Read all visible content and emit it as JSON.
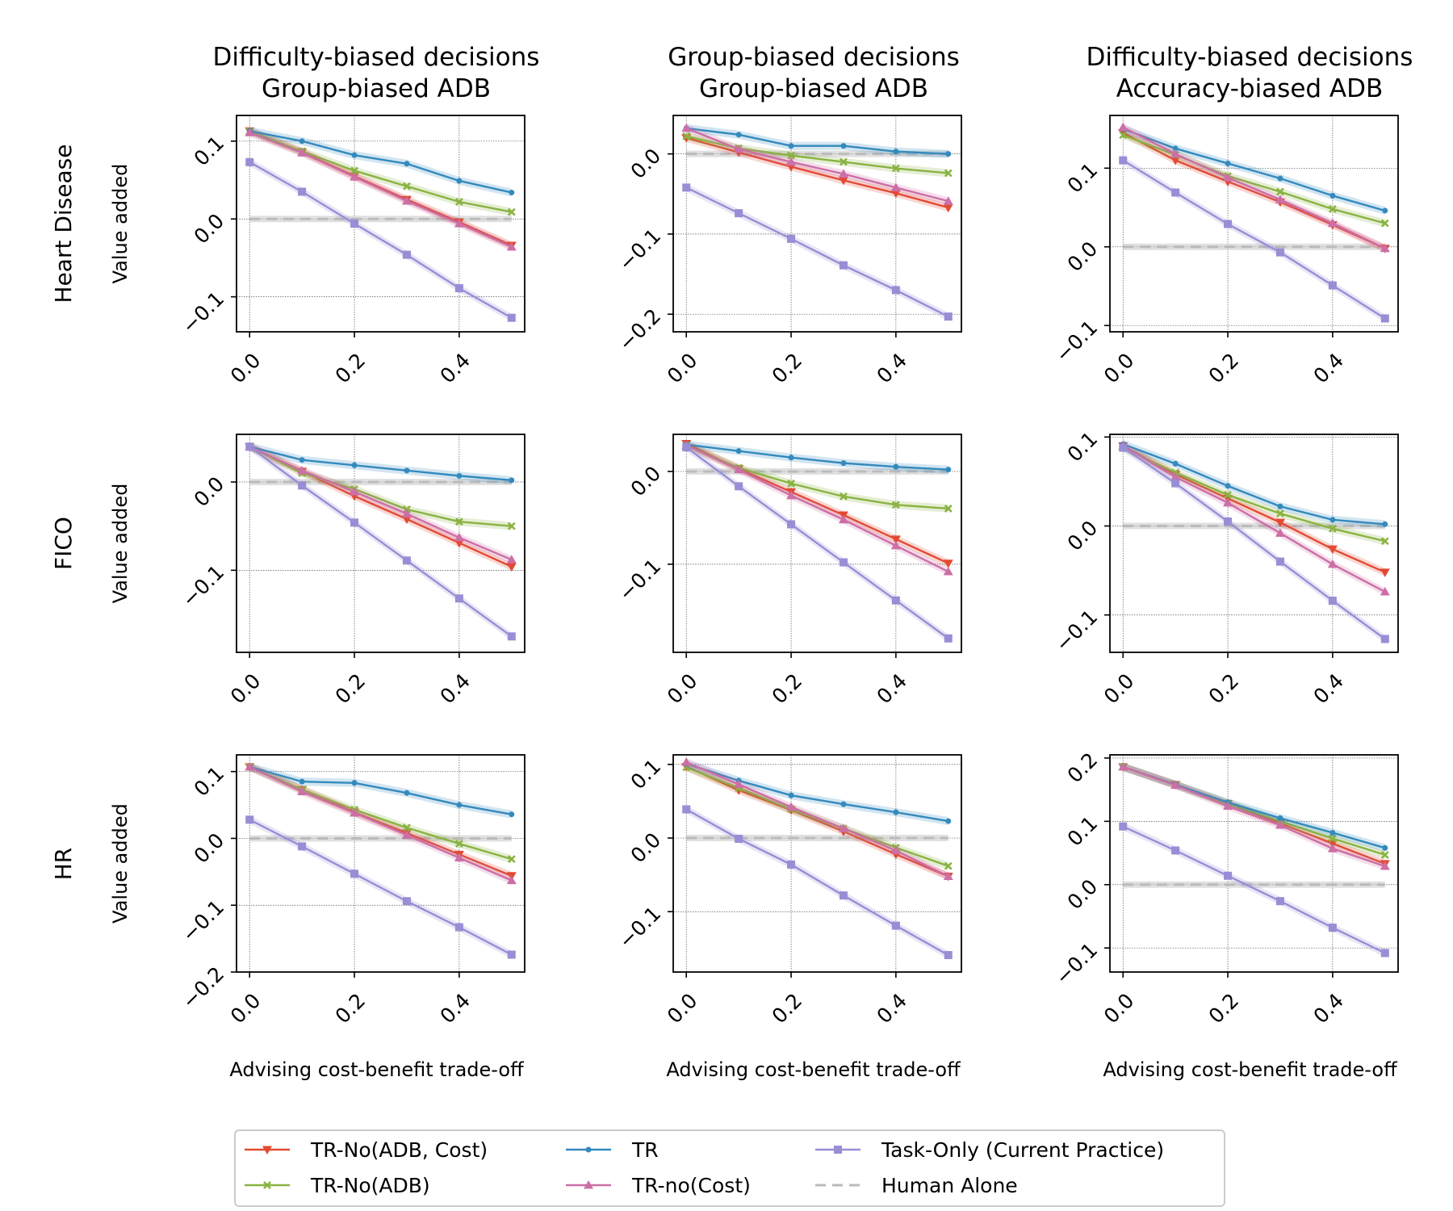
{
  "figure": {
    "column_titles": [
      [
        "Difficulty-biased decisions",
        "Group-biased ADB"
      ],
      [
        "Group-biased decisions",
        "Group-biased ADB"
      ],
      [
        "Difficulty-biased decisions",
        "Accuracy-biased ADB"
      ]
    ],
    "row_titles": [
      "Heart Disease",
      "FICO",
      "HR"
    ]
  },
  "series_styles": [
    {
      "name": "TR-No(ADB, Cost)",
      "color": "#e24a33",
      "marker": "triangle-down"
    },
    {
      "name": "TR-No(ADB)",
      "color": "#8ab342",
      "marker": "x"
    },
    {
      "name": "TR",
      "color": "#348abd",
      "marker": "dot"
    },
    {
      "name": "TR-no(Cost)",
      "color": "#cc6fa6",
      "marker": "triangle-up"
    },
    {
      "name": "Task-Only (Current Practice)",
      "color": "#988ed5",
      "marker": "square"
    },
    {
      "name": "Human Alone",
      "color": "#bbbbbb",
      "marker": "dashed"
    }
  ],
  "chart_data": [
    {
      "type": "line",
      "row": 0,
      "col": 0,
      "ylabel": "Value added",
      "xlabel": "",
      "xlim": [
        -0.025,
        0.525
      ],
      "ylim": [
        -0.145,
        0.133
      ],
      "x": [
        0,
        0.1,
        0.2,
        0.3,
        0.4,
        0.5
      ],
      "xticks": [
        0.0,
        0.2,
        0.4
      ],
      "xtick_labels": [
        "0.0",
        "0.2",
        "0.4"
      ],
      "yticks": [
        0.1,
        0.0,
        -0.1
      ],
      "ytick_labels": [
        "0.1",
        "0.0",
        "−0.1"
      ],
      "human_alone": 0.0,
      "series": [
        {
          "name": "TR-No(ADB, Cost)",
          "values": [
            0.113,
            0.086,
            0.055,
            0.025,
            -0.004,
            -0.034
          ]
        },
        {
          "name": "TR-No(ADB)",
          "values": [
            0.113,
            0.087,
            0.062,
            0.042,
            0.022,
            0.009
          ]
        },
        {
          "name": "TR",
          "values": [
            0.113,
            0.1,
            0.082,
            0.071,
            0.049,
            0.034
          ]
        },
        {
          "name": "TR-no(Cost)",
          "values": [
            0.111,
            0.085,
            0.054,
            0.023,
            -0.006,
            -0.036
          ]
        },
        {
          "name": "Task-Only (Current Practice)",
          "values": [
            0.073,
            0.035,
            -0.006,
            -0.046,
            -0.089,
            -0.127
          ]
        }
      ]
    },
    {
      "type": "line",
      "row": 0,
      "col": 1,
      "ylabel": "",
      "xlabel": "",
      "xlim": [
        -0.025,
        0.525
      ],
      "ylim": [
        -0.222,
        0.048
      ],
      "x": [
        0,
        0.1,
        0.2,
        0.3,
        0.4,
        0.5
      ],
      "xticks": [
        0.0,
        0.2,
        0.4
      ],
      "xtick_labels": [
        "0.0",
        "0.2",
        "0.4"
      ],
      "yticks": [
        0.0,
        -0.1,
        -0.2
      ],
      "ytick_labels": [
        "0.0",
        "−0.1",
        "−0.2"
      ],
      "human_alone": 0.0,
      "series": [
        {
          "name": "TR-No(ADB, Cost)",
          "values": [
            0.02,
            0.002,
            -0.016,
            -0.033,
            -0.049,
            -0.067
          ]
        },
        {
          "name": "TR-No(ADB)",
          "values": [
            0.022,
            0.007,
            -0.002,
            -0.01,
            -0.018,
            -0.024
          ]
        },
        {
          "name": "TR",
          "values": [
            0.032,
            0.024,
            0.01,
            0.01,
            0.003,
            0.0
          ]
        },
        {
          "name": "TR-no(Cost)",
          "values": [
            0.032,
            0.006,
            -0.01,
            -0.025,
            -0.042,
            -0.059
          ]
        },
        {
          "name": "Task-Only (Current Practice)",
          "values": [
            -0.042,
            -0.074,
            -0.106,
            -0.139,
            -0.17,
            -0.203
          ]
        }
      ]
    },
    {
      "type": "line",
      "row": 0,
      "col": 2,
      "ylabel": "",
      "xlabel": "",
      "xlim": [
        -0.025,
        0.525
      ],
      "ylim": [
        -0.108,
        0.167
      ],
      "x": [
        0,
        0.1,
        0.2,
        0.3,
        0.4,
        0.5
      ],
      "xticks": [
        0.0,
        0.2,
        0.4
      ],
      "xtick_labels": [
        "0.0",
        "0.2",
        "0.4"
      ],
      "yticks": [
        0.1,
        0.0,
        -0.1
      ],
      "ytick_labels": [
        "0.1",
        "0.0",
        "−0.1"
      ],
      "human_alone": 0.0,
      "series": [
        {
          "name": "TR-No(ADB, Cost)",
          "values": [
            0.145,
            0.11,
            0.083,
            0.057,
            0.028,
            -0.002
          ]
        },
        {
          "name": "TR-No(ADB)",
          "values": [
            0.142,
            0.117,
            0.09,
            0.07,
            0.048,
            0.03
          ]
        },
        {
          "name": "TR",
          "values": [
            0.15,
            0.125,
            0.106,
            0.087,
            0.065,
            0.046
          ]
        },
        {
          "name": "TR-no(Cost)",
          "values": [
            0.152,
            0.118,
            0.088,
            0.06,
            0.03,
            -0.002
          ]
        },
        {
          "name": "Task-Only (Current Practice)",
          "values": [
            0.11,
            0.069,
            0.029,
            -0.007,
            -0.049,
            -0.091
          ]
        }
      ]
    },
    {
      "type": "line",
      "row": 1,
      "col": 0,
      "ylabel": "Value added",
      "xlabel": "",
      "xlim": [
        -0.025,
        0.525
      ],
      "ylim": [
        -0.193,
        0.054
      ],
      "x": [
        0,
        0.1,
        0.2,
        0.3,
        0.4,
        0.5
      ],
      "xticks": [
        0.0,
        0.2,
        0.4
      ],
      "xtick_labels": [
        "0.0",
        "0.2",
        "0.4"
      ],
      "yticks": [
        0.0,
        -0.1
      ],
      "ytick_labels": [
        "0.0",
        "−0.1"
      ],
      "human_alone": 0.0,
      "series": [
        {
          "name": "TR-No(ADB, Cost)",
          "values": [
            0.04,
            0.012,
            -0.016,
            -0.042,
            -0.069,
            -0.096
          ]
        },
        {
          "name": "TR-No(ADB)",
          "values": [
            0.04,
            0.01,
            -0.008,
            -0.031,
            -0.045,
            -0.05
          ]
        },
        {
          "name": "TR",
          "values": [
            0.04,
            0.025,
            0.019,
            0.013,
            0.007,
            0.002
          ]
        },
        {
          "name": "TR-no(Cost)",
          "values": [
            0.04,
            0.013,
            -0.011,
            -0.036,
            -0.063,
            -0.088
          ]
        },
        {
          "name": "Task-Only (Current Practice)",
          "values": [
            0.04,
            -0.004,
            -0.046,
            -0.089,
            -0.132,
            -0.175
          ]
        }
      ]
    },
    {
      "type": "line",
      "row": 1,
      "col": 1,
      "ylabel": "",
      "xlabel": "",
      "xlim": [
        -0.025,
        0.525
      ],
      "ylim": [
        -0.195,
        0.04
      ],
      "x": [
        0,
        0.1,
        0.2,
        0.3,
        0.4,
        0.5
      ],
      "xticks": [
        0.0,
        0.2,
        0.4
      ],
      "xtick_labels": [
        "0.0",
        "0.2",
        "0.4"
      ],
      "yticks": [
        0.0,
        -0.1
      ],
      "ytick_labels": [
        "0.0",
        "−0.1"
      ],
      "human_alone": 0.0,
      "series": [
        {
          "name": "TR-No(ADB, Cost)",
          "values": [
            0.03,
            0.003,
            -0.022,
            -0.047,
            -0.073,
            -0.099
          ]
        },
        {
          "name": "TR-No(ADB)",
          "values": [
            0.028,
            0.004,
            -0.013,
            -0.027,
            -0.036,
            -0.04
          ]
        },
        {
          "name": "TR",
          "values": [
            0.029,
            0.022,
            0.015,
            0.009,
            0.005,
            0.002
          ]
        },
        {
          "name": "TR-no(Cost)",
          "values": [
            0.028,
            0.002,
            -0.026,
            -0.052,
            -0.08,
            -0.108
          ]
        },
        {
          "name": "Task-Only (Current Practice)",
          "values": [
            0.026,
            -0.016,
            -0.057,
            -0.098,
            -0.139,
            -0.18
          ]
        }
      ]
    },
    {
      "type": "line",
      "row": 1,
      "col": 2,
      "ylabel": "",
      "xlabel": "",
      "xlim": [
        -0.025,
        0.525
      ],
      "ylim": [
        -0.142,
        0.103
      ],
      "x": [
        0,
        0.1,
        0.2,
        0.3,
        0.4,
        0.5
      ],
      "xticks": [
        0.0,
        0.2,
        0.4
      ],
      "xtick_labels": [
        "0.0",
        "0.2",
        "0.4"
      ],
      "yticks": [
        0.1,
        0.0,
        -0.1
      ],
      "ytick_labels": [
        "0.1",
        "0.0",
        "−0.1"
      ],
      "human_alone": 0.0,
      "series": [
        {
          "name": "TR-No(ADB, Cost)",
          "values": [
            0.09,
            0.058,
            0.031,
            0.004,
            -0.026,
            -0.052
          ]
        },
        {
          "name": "TR-No(ADB)",
          "values": [
            0.088,
            0.06,
            0.035,
            0.014,
            -0.003,
            -0.017
          ]
        },
        {
          "name": "TR",
          "values": [
            0.092,
            0.07,
            0.045,
            0.022,
            0.007,
            0.002
          ]
        },
        {
          "name": "TR-no(Cost)",
          "values": [
            0.09,
            0.055,
            0.026,
            -0.008,
            -0.043,
            -0.074
          ]
        },
        {
          "name": "Task-Only (Current Practice)",
          "values": [
            0.088,
            0.048,
            0.005,
            -0.04,
            -0.084,
            -0.127
          ]
        }
      ]
    },
    {
      "type": "line",
      "row": 2,
      "col": 0,
      "ylabel": "Value added",
      "xlabel": "Advising cost-benefit trade-off",
      "xlim": [
        -0.025,
        0.525
      ],
      "ylim": [
        -0.2,
        0.125
      ],
      "x": [
        0,
        0.1,
        0.2,
        0.3,
        0.4,
        0.5
      ],
      "xticks": [
        0.0,
        0.2,
        0.4
      ],
      "xtick_labels": [
        "0.0",
        "0.2",
        "0.4"
      ],
      "yticks": [
        0.1,
        0.0,
        -0.1,
        -0.2
      ],
      "ytick_labels": [
        "0.1",
        "0.0",
        "−0.1",
        "−0.2"
      ],
      "human_alone": 0.0,
      "series": [
        {
          "name": "TR-No(ADB, Cost)",
          "values": [
            0.107,
            0.073,
            0.039,
            0.008,
            -0.024,
            -0.056
          ]
        },
        {
          "name": "TR-No(ADB)",
          "values": [
            0.107,
            0.073,
            0.043,
            0.016,
            -0.008,
            -0.031
          ]
        },
        {
          "name": "TR",
          "values": [
            0.107,
            0.085,
            0.083,
            0.068,
            0.05,
            0.036
          ]
        },
        {
          "name": "TR-no(Cost)",
          "values": [
            0.107,
            0.07,
            0.038,
            0.005,
            -0.029,
            -0.063
          ]
        },
        {
          "name": "Task-Only (Current Practice)",
          "values": [
            0.028,
            -0.012,
            -0.053,
            -0.094,
            -0.133,
            -0.174
          ]
        }
      ]
    },
    {
      "type": "line",
      "row": 2,
      "col": 1,
      "ylabel": "",
      "xlabel": "Advising cost-benefit trade-off",
      "xlim": [
        -0.025,
        0.525
      ],
      "ylim": [
        -0.182,
        0.113
      ],
      "x": [
        0,
        0.1,
        0.2,
        0.3,
        0.4,
        0.5
      ],
      "xticks": [
        0.0,
        0.2,
        0.4
      ],
      "xtick_labels": [
        "0.0",
        "0.2",
        "0.4"
      ],
      "yticks": [
        0.1,
        0.0,
        -0.1
      ],
      "ytick_labels": [
        "0.1",
        "0.0",
        "−0.1"
      ],
      "human_alone": 0.0,
      "series": [
        {
          "name": "TR-No(ADB, Cost)",
          "values": [
            0.097,
            0.065,
            0.038,
            0.009,
            -0.022,
            -0.052
          ]
        },
        {
          "name": "TR-No(ADB)",
          "values": [
            0.096,
            0.068,
            0.039,
            0.013,
            -0.013,
            -0.038
          ]
        },
        {
          "name": "TR",
          "values": [
            0.101,
            0.078,
            0.058,
            0.046,
            0.035,
            0.023
          ]
        },
        {
          "name": "TR-no(Cost)",
          "values": [
            0.103,
            0.073,
            0.042,
            0.013,
            -0.017,
            -0.052
          ]
        },
        {
          "name": "Task-Only (Current Practice)",
          "values": [
            0.039,
            -0.001,
            -0.036,
            -0.078,
            -0.119,
            -0.159
          ]
        }
      ]
    },
    {
      "type": "line",
      "row": 2,
      "col": 2,
      "ylabel": "",
      "xlabel": "Advising cost-benefit trade-off",
      "xlim": [
        -0.025,
        0.525
      ],
      "ylim": [
        -0.138,
        0.205
      ],
      "x": [
        0,
        0.1,
        0.2,
        0.3,
        0.4,
        0.5
      ],
      "xticks": [
        0.0,
        0.2,
        0.4
      ],
      "xtick_labels": [
        "0.0",
        "0.2",
        "0.4"
      ],
      "yticks": [
        0.2,
        0.1,
        0.0,
        -0.1
      ],
      "ytick_labels": [
        "0.2",
        "0.1",
        "0.0",
        "−0.1"
      ],
      "human_alone": 0.0,
      "series": [
        {
          "name": "TR-No(ADB, Cost)",
          "values": [
            0.186,
            0.158,
            0.128,
            0.097,
            0.065,
            0.033
          ]
        },
        {
          "name": "TR-No(ADB)",
          "values": [
            0.186,
            0.158,
            0.128,
            0.1,
            0.073,
            0.047
          ]
        },
        {
          "name": "TR",
          "values": [
            0.186,
            0.158,
            0.13,
            0.105,
            0.082,
            0.058
          ]
        },
        {
          "name": "TR-no(Cost)",
          "values": [
            0.186,
            0.157,
            0.124,
            0.094,
            0.057,
            0.029
          ]
        },
        {
          "name": "Task-Only (Current Practice)",
          "values": [
            0.092,
            0.054,
            0.014,
            -0.026,
            -0.068,
            -0.108
          ]
        }
      ]
    }
  ],
  "legend": {
    "position": "bottom-center",
    "columns": 3,
    "entries": [
      "TR-No(ADB, Cost)",
      "TR-No(ADB)",
      "TR",
      "TR-no(Cost)",
      "Task-Only (Current Practice)",
      "Human Alone"
    ]
  }
}
